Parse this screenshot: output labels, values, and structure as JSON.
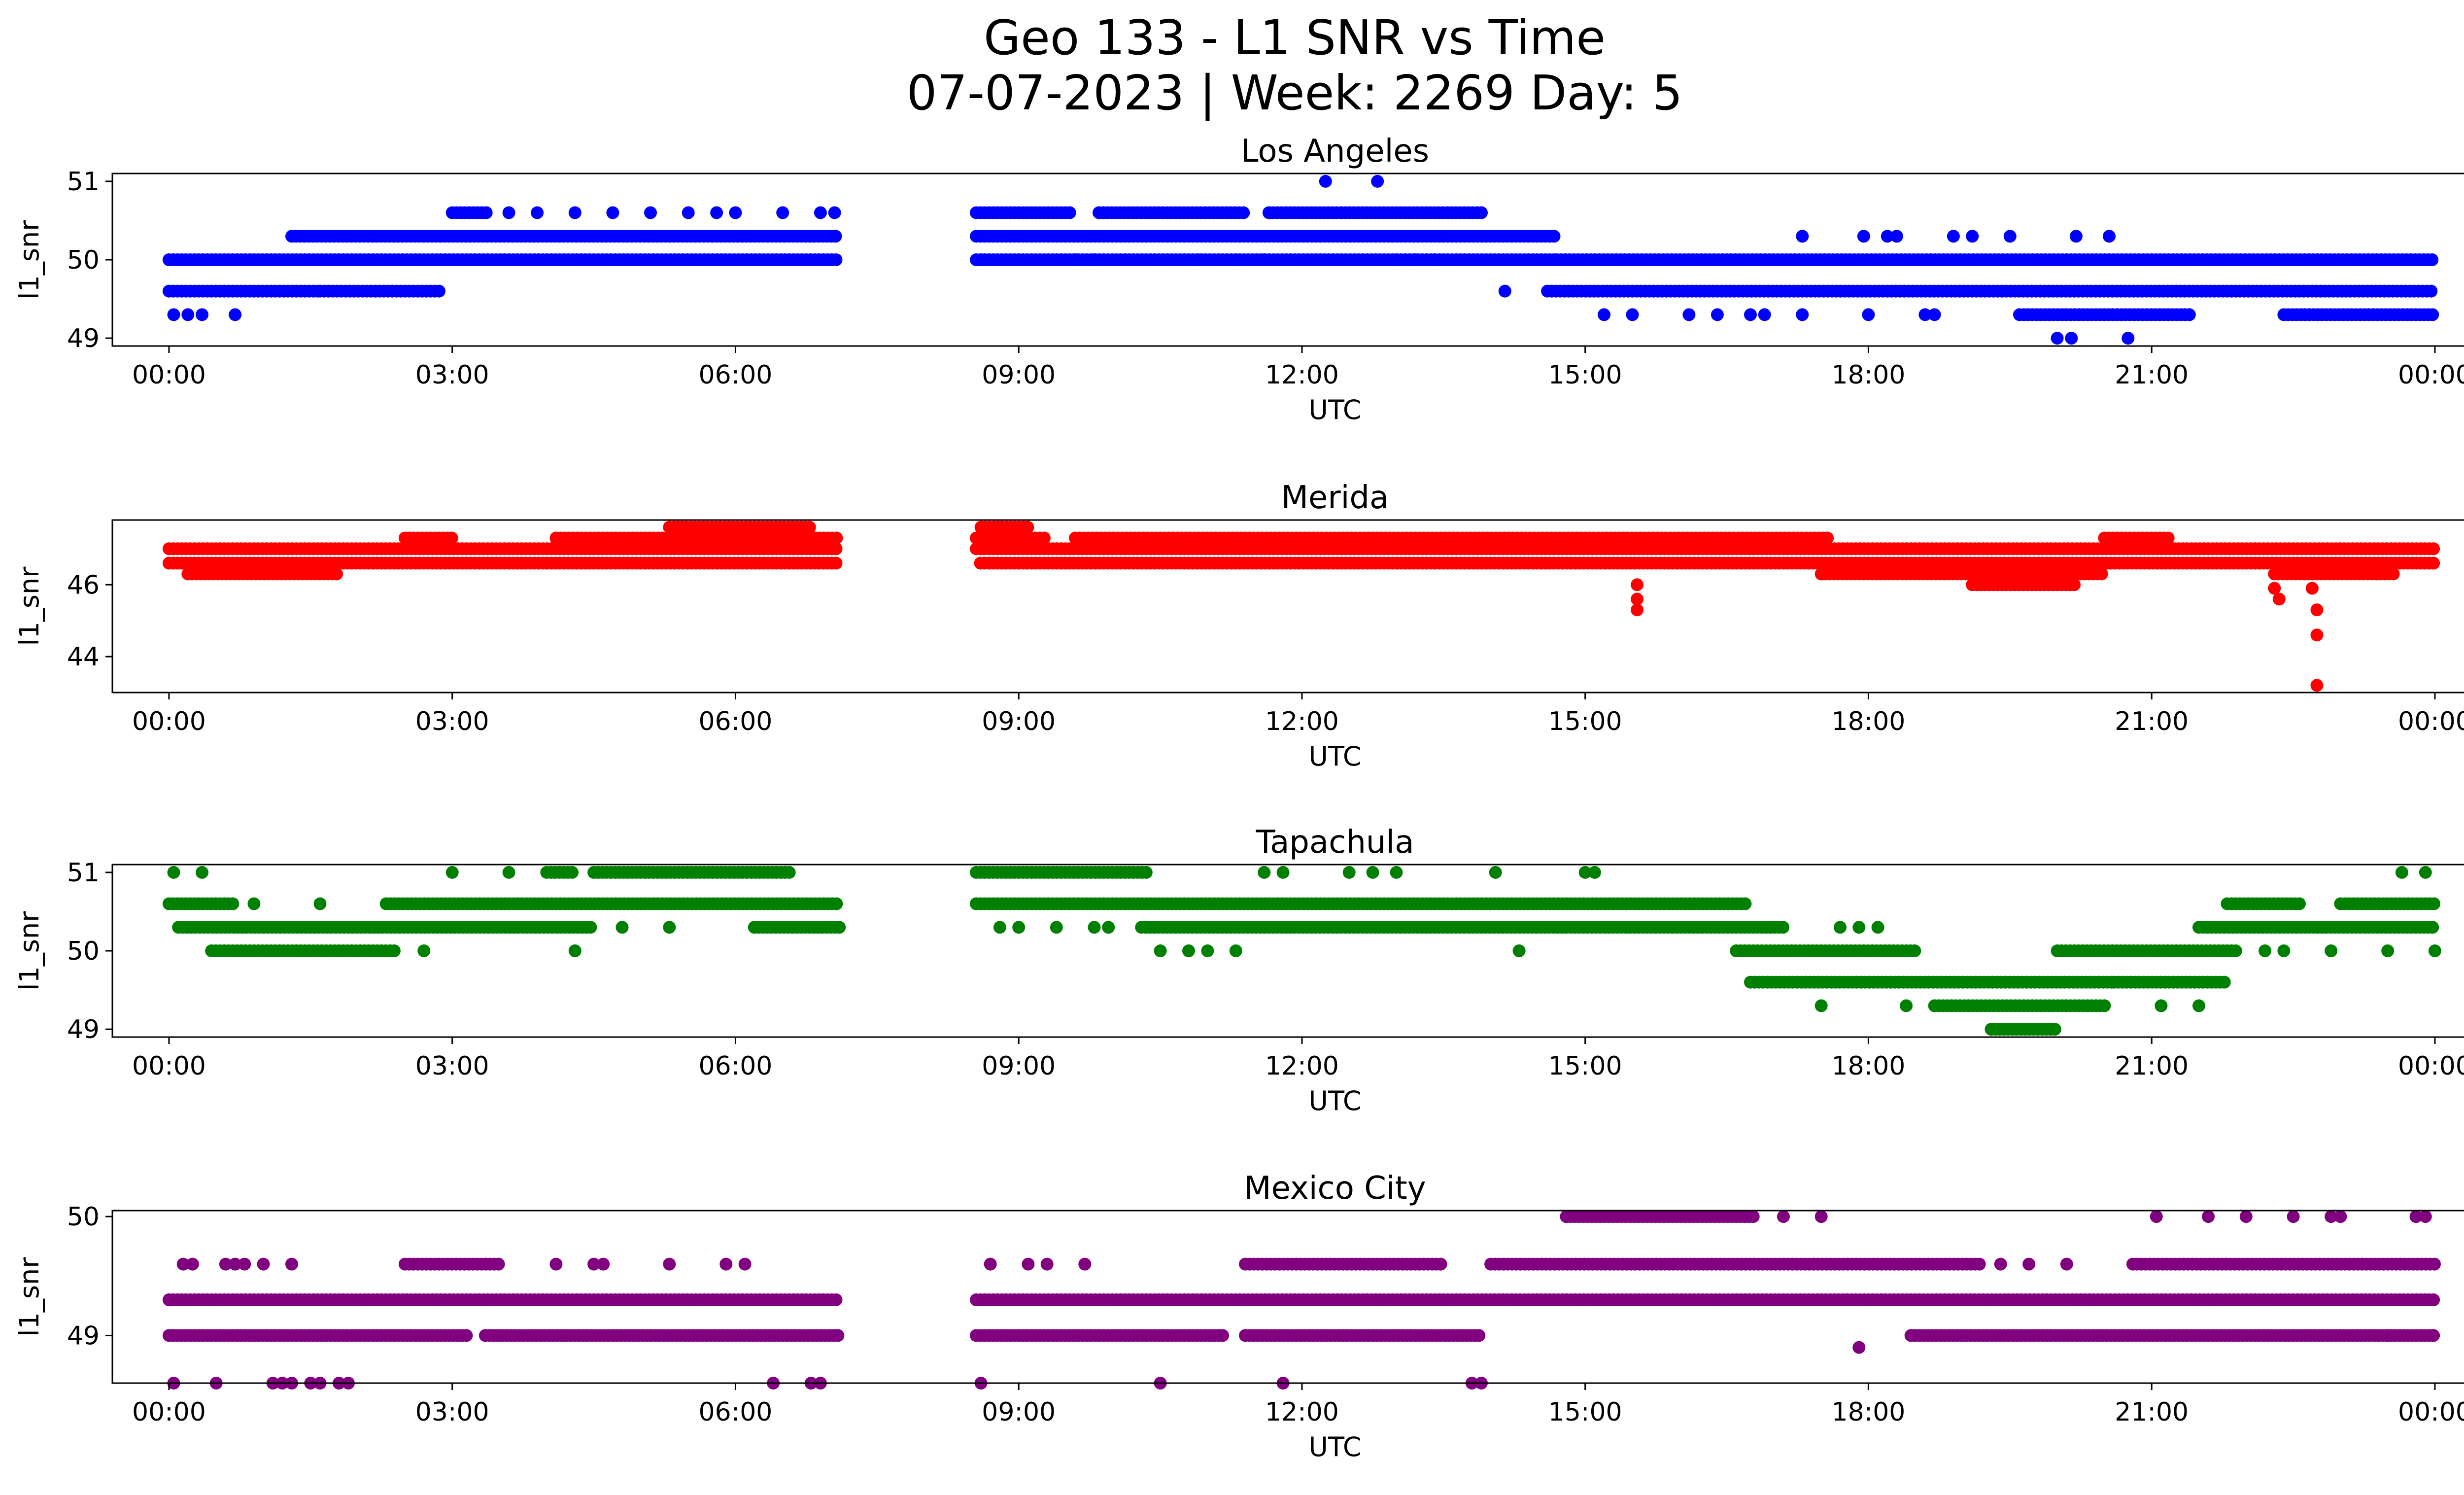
{
  "figure": {
    "title_line1": "Geo 133 - L1 SNR vs Time",
    "title_line2": "07-07-2023 | Week: 2269 Day: 5"
  },
  "chart_data": [
    {
      "type": "scatter",
      "title": "Los Angeles",
      "xlabel": "UTC",
      "ylabel": "l1_snr",
      "color": "#0000ff",
      "x_ticks": [
        "00:00",
        "03:00",
        "06:00",
        "09:00",
        "12:00",
        "15:00",
        "18:00",
        "21:00",
        "00:00"
      ],
      "xlim_hours": [
        -0.6,
        25.3
      ],
      "y_ticks": [
        49,
        50,
        51
      ],
      "ylim": [
        48.9,
        51.1
      ],
      "gap_hours": [
        7.1,
        8.55
      ],
      "bands": [
        {
          "y": 49.6,
          "segments": [
            [
              0,
              1.6
            ],
            [
              1.6,
              2.9
            ],
            [
              14.6,
              24.0
            ]
          ]
        },
        {
          "y": 50.0,
          "segments": [
            [
              0,
              7.1
            ],
            [
              8.55,
              14.7
            ],
            [
              14.7,
              24.0
            ]
          ]
        },
        {
          "y": 50.3,
          "segments": [
            [
              1.3,
              7.1
            ],
            [
              8.55,
              14.7
            ]
          ]
        },
        {
          "y": 50.6,
          "segments": [
            [
              3.0,
              3.4
            ],
            [
              8.55,
              9.55
            ],
            [
              9.85,
              11.4
            ],
            [
              11.65,
              13.9
            ]
          ]
        },
        {
          "y": 49.3,
          "segments": [
            [
              19.6,
              21.4
            ],
            [
              22.4,
              24.0
            ]
          ]
        }
      ],
      "points": [
        [
          0.05,
          49.3
        ],
        [
          0.2,
          49.3
        ],
        [
          0.35,
          49.3
        ],
        [
          0.7,
          49.3
        ],
        [
          3.6,
          50.6
        ],
        [
          3.9,
          50.6
        ],
        [
          4.3,
          50.6
        ],
        [
          4.7,
          50.6
        ],
        [
          5.1,
          50.6
        ],
        [
          5.5,
          50.6
        ],
        [
          5.8,
          50.6
        ],
        [
          6.0,
          50.6
        ],
        [
          6.5,
          50.6
        ],
        [
          6.9,
          50.6
        ],
        [
          7.05,
          50.6
        ],
        [
          8.6,
          50.0
        ],
        [
          9.6,
          50.0
        ],
        [
          9.8,
          50.0
        ],
        [
          10.9,
          50.0
        ],
        [
          11.3,
          50.0
        ],
        [
          11.6,
          50.0
        ],
        [
          12.25,
          51.0
        ],
        [
          12.8,
          51.0
        ],
        [
          13.0,
          50.0
        ],
        [
          13.2,
          50.0
        ],
        [
          13.4,
          50.0
        ],
        [
          14.15,
          49.6
        ],
        [
          15.2,
          49.3
        ],
        [
          15.5,
          49.3
        ],
        [
          16.1,
          49.3
        ],
        [
          16.4,
          49.3
        ],
        [
          16.75,
          49.3
        ],
        [
          16.9,
          49.3
        ],
        [
          17.3,
          49.3
        ],
        [
          18.0,
          49.3
        ],
        [
          18.6,
          49.3
        ],
        [
          18.7,
          49.3
        ],
        [
          17.3,
          50.3
        ],
        [
          17.95,
          50.3
        ],
        [
          18.2,
          50.3
        ],
        [
          18.3,
          50.3
        ],
        [
          18.9,
          50.3
        ],
        [
          19.1,
          50.3
        ],
        [
          19.5,
          50.3
        ],
        [
          20.2,
          50.3
        ],
        [
          20.55,
          50.3
        ],
        [
          20.0,
          49.0
        ],
        [
          20.15,
          49.0
        ],
        [
          20.75,
          49.0
        ]
      ]
    },
    {
      "type": "scatter",
      "title": "Merida",
      "xlabel": "UTC",
      "ylabel": "l1_snr",
      "color": "#ff0000",
      "x_ticks": [
        "00:00",
        "03:00",
        "06:00",
        "09:00",
        "12:00",
        "15:00",
        "18:00",
        "21:00",
        "00:00"
      ],
      "xlim_hours": [
        -0.6,
        25.3
      ],
      "y_ticks": [
        44,
        46
      ],
      "ylim": [
        43.0,
        47.8
      ],
      "gap_hours": [
        7.1,
        8.55
      ],
      "bands": [
        {
          "y": 46.3,
          "segments": [
            [
              0.2,
              1.8
            ],
            [
              17.5,
              20.5
            ],
            [
              22.3,
              23.6
            ]
          ]
        },
        {
          "y": 46.6,
          "segments": [
            [
              0,
              24.0
            ]
          ]
        },
        {
          "y": 47.0,
          "segments": [
            [
              0,
              7.1
            ],
            [
              8.55,
              24.0
            ]
          ]
        },
        {
          "y": 47.3,
          "segments": [
            [
              2.5,
              3.0
            ],
            [
              4.1,
              7.1
            ],
            [
              8.55,
              9.3
            ],
            [
              9.6,
              17.6
            ],
            [
              20.5,
              21.2
            ]
          ]
        },
        {
          "y": 47.6,
          "segments": [
            [
              5.3,
              6.8
            ],
            [
              8.6,
              9.1
            ]
          ]
        },
        {
          "y": 46.0,
          "segments": [
            [
              19.1,
              20.2
            ]
          ]
        }
      ],
      "points": [
        [
          15.55,
          46.0
        ],
        [
          15.55,
          45.6
        ],
        [
          15.55,
          45.3
        ],
        [
          22.3,
          45.9
        ],
        [
          22.35,
          45.6
        ],
        [
          22.7,
          45.9
        ],
        [
          22.75,
          45.3
        ],
        [
          22.75,
          44.6
        ],
        [
          22.75,
          43.2
        ]
      ]
    },
    {
      "type": "scatter",
      "title": "Tapachula",
      "xlabel": "UTC",
      "ylabel": "l1_snr",
      "color": "#008000",
      "x_ticks": [
        "00:00",
        "03:00",
        "06:00",
        "09:00",
        "12:00",
        "15:00",
        "18:00",
        "21:00",
        "00:00"
      ],
      "xlim_hours": [
        -0.6,
        25.3
      ],
      "y_ticks": [
        49,
        50,
        51
      ],
      "ylim": [
        48.9,
        51.1
      ],
      "gap_hours": [
        7.1,
        8.55
      ],
      "bands": [
        {
          "y": 50.6,
          "segments": [
            [
              0,
              0.7
            ],
            [
              2.3,
              7.1
            ],
            [
              8.55,
              16.7
            ],
            [
              21.8,
              22.6
            ],
            [
              23.0,
              24.0
            ]
          ]
        },
        {
          "y": 50.3,
          "segments": [
            [
              0.1,
              4.5
            ],
            [
              6.2,
              7.1
            ],
            [
              10.3,
              17.1
            ],
            [
              21.5,
              24.0
            ]
          ]
        },
        {
          "y": 50.0,
          "segments": [
            [
              0.45,
              2.4
            ],
            [
              16.6,
              18.5
            ],
            [
              20.0,
              21.9
            ]
          ]
        },
        {
          "y": 51.0,
          "segments": [
            [
              4.0,
              4.3
            ],
            [
              4.5,
              6.6
            ],
            [
              8.55,
              10.35
            ]
          ]
        },
        {
          "y": 49.6,
          "segments": [
            [
              16.75,
              20.6
            ],
            [
              20.6,
              21.8
            ]
          ]
        },
        {
          "y": 49.3,
          "segments": [
            [
              18.7,
              20.5
            ]
          ]
        },
        {
          "y": 49.0,
          "segments": [
            [
              19.3,
              20.0
            ]
          ]
        }
      ],
      "points": [
        [
          0.05,
          51.0
        ],
        [
          0.35,
          51.0
        ],
        [
          0.9,
          50.6
        ],
        [
          1.6,
          50.6
        ],
        [
          2.7,
          50.0
        ],
        [
          3.0,
          51.0
        ],
        [
          3.6,
          51.0
        ],
        [
          4.3,
          50.0
        ],
        [
          4.8,
          50.3
        ],
        [
          5.3,
          50.3
        ],
        [
          8.8,
          50.3
        ],
        [
          9.0,
          50.3
        ],
        [
          9.4,
          50.3
        ],
        [
          9.8,
          50.3
        ],
        [
          9.95,
          50.3
        ],
        [
          10.5,
          50.0
        ],
        [
          10.8,
          50.0
        ],
        [
          11.0,
          50.0
        ],
        [
          11.3,
          50.0
        ],
        [
          11.6,
          51.0
        ],
        [
          11.8,
          51.0
        ],
        [
          12.5,
          51.0
        ],
        [
          12.75,
          51.0
        ],
        [
          13.0,
          51.0
        ],
        [
          14.05,
          51.0
        ],
        [
          15.0,
          51.0
        ],
        [
          15.1,
          51.0
        ],
        [
          14.3,
          50.0
        ],
        [
          17.7,
          50.3
        ],
        [
          17.9,
          50.3
        ],
        [
          18.1,
          50.3
        ],
        [
          17.5,
          49.3
        ],
        [
          18.4,
          49.3
        ],
        [
          21.1,
          49.3
        ],
        [
          21.5,
          49.3
        ],
        [
          22.2,
          50.0
        ],
        [
          22.4,
          50.0
        ],
        [
          22.9,
          50.0
        ],
        [
          23.5,
          50.0
        ],
        [
          24.0,
          50.0
        ],
        [
          23.65,
          51.0
        ],
        [
          23.9,
          51.0
        ]
      ]
    },
    {
      "type": "scatter",
      "title": "Mexico City",
      "xlabel": "UTC",
      "ylabel": "l1_snr",
      "color": "#800080",
      "x_ticks": [
        "00:00",
        "03:00",
        "06:00",
        "09:00",
        "12:00",
        "15:00",
        "18:00",
        "21:00",
        "00:00"
      ],
      "xlim_hours": [
        -0.6,
        25.3
      ],
      "y_ticks": [
        49,
        50
      ],
      "ylim": [
        48.6,
        50.05
      ],
      "gap_hours": [
        7.1,
        8.55
      ],
      "bands": [
        {
          "y": 49.3,
          "segments": [
            [
              0,
              7.1
            ],
            [
              8.55,
              24.0
            ]
          ]
        },
        {
          "y": 49.0,
          "segments": [
            [
              0,
              3.15
            ],
            [
              3.35,
              7.1
            ],
            [
              8.55,
              11.2
            ],
            [
              11.4,
              13.9
            ],
            [
              18.45,
              24.0
            ]
          ]
        },
        {
          "y": 49.6,
          "segments": [
            [
              2.5,
              3.5
            ],
            [
              11.4,
              13.5
            ],
            [
              14.0,
              19.2
            ],
            [
              20.8,
              24.0
            ]
          ]
        },
        {
          "y": 50.0,
          "segments": [
            [
              14.8,
              16.8
            ]
          ]
        }
      ],
      "points": [
        [
          0.15,
          49.6
        ],
        [
          0.25,
          49.6
        ],
        [
          0.6,
          49.6
        ],
        [
          0.7,
          49.6
        ],
        [
          0.8,
          49.6
        ],
        [
          1.0,
          49.6
        ],
        [
          1.3,
          49.6
        ],
        [
          4.1,
          49.6
        ],
        [
          4.5,
          49.6
        ],
        [
          4.6,
          49.6
        ],
        [
          5.3,
          49.6
        ],
        [
          5.9,
          49.6
        ],
        [
          6.1,
          49.6
        ],
        [
          0.05,
          48.6
        ],
        [
          0.5,
          48.6
        ],
        [
          1.1,
          48.6
        ],
        [
          1.2,
          48.6
        ],
        [
          1.3,
          48.6
        ],
        [
          1.5,
          48.6
        ],
        [
          1.6,
          48.6
        ],
        [
          1.8,
          48.6
        ],
        [
          1.9,
          48.6
        ],
        [
          6.4,
          48.6
        ],
        [
          6.8,
          48.6
        ],
        [
          6.9,
          48.6
        ],
        [
          8.7,
          49.6
        ],
        [
          9.1,
          49.6
        ],
        [
          9.3,
          49.6
        ],
        [
          9.7,
          49.6
        ],
        [
          8.6,
          48.6
        ],
        [
          10.5,
          48.6
        ],
        [
          11.8,
          48.6
        ],
        [
          13.8,
          48.6
        ],
        [
          13.9,
          48.6
        ],
        [
          17.1,
          50.0
        ],
        [
          17.5,
          50.0
        ],
        [
          17.9,
          48.9
        ],
        [
          19.4,
          49.6
        ],
        [
          19.7,
          49.6
        ],
        [
          20.1,
          49.6
        ],
        [
          21.05,
          50.0
        ],
        [
          21.6,
          50.0
        ],
        [
          22.0,
          50.0
        ],
        [
          22.5,
          50.0
        ],
        [
          22.9,
          50.0
        ],
        [
          23.0,
          50.0
        ],
        [
          23.8,
          50.0
        ],
        [
          23.9,
          50.0
        ],
        [
          23.5,
          49.0
        ]
      ]
    }
  ]
}
